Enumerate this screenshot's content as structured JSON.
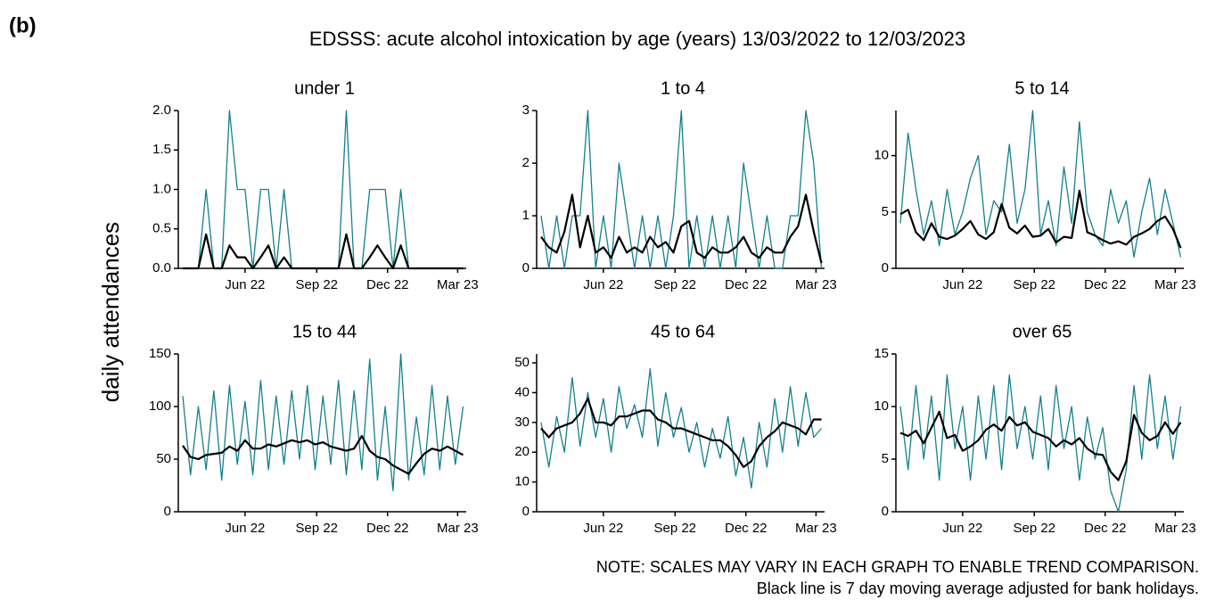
{
  "figure_label": "(b)",
  "title": "EDSSS: acute alcohol intoxication by age (years) 13/03/2022 to 12/03/2023",
  "y_label": "daily attendances",
  "notes": [
    "NOTE: SCALES MAY VARY IN EACH GRAPH TO ENABLE TREND COMPARISON.",
    "Black line is 7 day moving average adjusted for bank holidays."
  ],
  "chart_data": [
    {
      "type": "line",
      "title": "under 1",
      "x": [
        0,
        10,
        20,
        30,
        40,
        50,
        60,
        70,
        80,
        90,
        100,
        110,
        120,
        130,
        140,
        150,
        160,
        170,
        180,
        190,
        200,
        210,
        220,
        230,
        240,
        250,
        260,
        270,
        280,
        290,
        300,
        310,
        320,
        330,
        340,
        350,
        360
      ],
      "xlim": [
        0,
        364
      ],
      "xticks": [
        {
          "value": 80,
          "label": "Jun 22"
        },
        {
          "value": 172,
          "label": "Sep 22"
        },
        {
          "value": 263,
          "label": "Dec 22"
        },
        {
          "value": 353,
          "label": "Mar 23"
        }
      ],
      "ylim": [
        0,
        2
      ],
      "yticks": [
        {
          "value": 0,
          "label": "0.0"
        },
        {
          "value": 0.5,
          "label": "0.5"
        },
        {
          "value": 1,
          "label": "1.0"
        },
        {
          "value": 1.5,
          "label": "1.5"
        },
        {
          "value": 2,
          "label": "2.0"
        }
      ],
      "series": [
        {
          "color": "#12808f",
          "values": [
            0,
            0,
            0,
            1,
            0,
            0,
            2,
            1,
            1,
            0,
            1,
            1,
            0,
            1,
            0,
            0,
            0,
            0,
            0,
            0,
            0,
            2,
            0,
            0,
            1,
            1,
            1,
            0,
            1,
            0,
            0,
            0,
            0,
            0,
            0,
            0,
            0
          ]
        },
        {
          "color": "#000000",
          "values": [
            0,
            0,
            0,
            0.43,
            0,
            0,
            0.29,
            0.14,
            0.14,
            0,
            0.14,
            0.29,
            0,
            0.14,
            0,
            0,
            0,
            0,
            0,
            0,
            0,
            0.43,
            0,
            0,
            0.14,
            0.29,
            0.14,
            0,
            0.29,
            0,
            0,
            0,
            0,
            0,
            0,
            0,
            0
          ]
        }
      ]
    },
    {
      "type": "line",
      "title": "1 to 4",
      "x": [
        0,
        10,
        20,
        30,
        40,
        50,
        60,
        70,
        80,
        90,
        100,
        110,
        120,
        130,
        140,
        150,
        160,
        170,
        180,
        190,
        200,
        210,
        220,
        230,
        240,
        250,
        260,
        270,
        280,
        290,
        300,
        310,
        320,
        330,
        340,
        350,
        360
      ],
      "xlim": [
        0,
        364
      ],
      "xticks": [
        {
          "value": 80,
          "label": "Jun 22"
        },
        {
          "value": 172,
          "label": "Sep 22"
        },
        {
          "value": 263,
          "label": "Dec 22"
        },
        {
          "value": 353,
          "label": "Mar 23"
        }
      ],
      "ylim": [
        0,
        3
      ],
      "yticks": [
        0,
        1,
        2,
        3
      ],
      "series": [
        {
          "color": "#12808f",
          "values": [
            1,
            0,
            1,
            0,
            1,
            1,
            3,
            0,
            1,
            0,
            2,
            1,
            0,
            1,
            0,
            1,
            0,
            1,
            3,
            0,
            1,
            0,
            1,
            0,
            1,
            0,
            2,
            1,
            0,
            1,
            0,
            0,
            1,
            1,
            3,
            2,
            0
          ]
        },
        {
          "color": "#000000",
          "values": [
            0.6,
            0.4,
            0.3,
            0.7,
            1.4,
            0.4,
            1.0,
            0.3,
            0.4,
            0.2,
            0.6,
            0.3,
            0.4,
            0.3,
            0.6,
            0.4,
            0.5,
            0.3,
            0.8,
            0.9,
            0.3,
            0.2,
            0.4,
            0.3,
            0.3,
            0.4,
            0.6,
            0.3,
            0.2,
            0.4,
            0.3,
            0.3,
            0.6,
            0.8,
            1.4,
            0.7,
            0.1
          ]
        }
      ]
    },
    {
      "type": "line",
      "title": "5 to 14",
      "x": [
        0,
        10,
        20,
        30,
        40,
        50,
        60,
        70,
        80,
        90,
        100,
        110,
        120,
        130,
        140,
        150,
        160,
        170,
        180,
        190,
        200,
        210,
        220,
        230,
        240,
        250,
        260,
        270,
        280,
        290,
        300,
        310,
        320,
        330,
        340,
        350,
        360
      ],
      "xlim": [
        0,
        364
      ],
      "xticks": [
        {
          "value": 80,
          "label": "Jun 22"
        },
        {
          "value": 172,
          "label": "Sep 22"
        },
        {
          "value": 263,
          "label": "Dec 22"
        },
        {
          "value": 353,
          "label": "Mar 23"
        }
      ],
      "ylim": [
        0,
        14
      ],
      "yticks": [
        0,
        5,
        10
      ],
      "series": [
        {
          "color": "#12808f",
          "values": [
            4,
            12,
            7,
            3,
            6,
            2,
            7,
            3,
            5,
            8,
            10,
            3,
            6,
            5,
            11,
            4,
            7,
            14,
            3,
            6,
            2,
            9,
            4,
            13,
            5,
            3,
            2,
            7,
            4,
            6,
            1,
            5,
            8,
            3,
            7,
            4,
            1
          ]
        },
        {
          "color": "#000000",
          "values": [
            4.8,
            5.2,
            3.2,
            2.5,
            4.0,
            2.8,
            2.6,
            2.9,
            3.5,
            4.2,
            3.0,
            2.6,
            3.2,
            5.7,
            3.6,
            3.1,
            3.8,
            2.8,
            2.9,
            3.5,
            2.3,
            2.8,
            2.7,
            6.9,
            3.2,
            2.9,
            2.5,
            2.2,
            2.4,
            2.1,
            2.8,
            3.1,
            3.5,
            4.2,
            4.6,
            3.5,
            1.8
          ]
        }
      ]
    },
    {
      "type": "line",
      "title": "15 to 44",
      "x": [
        0,
        10,
        20,
        30,
        40,
        50,
        60,
        70,
        80,
        90,
        100,
        110,
        120,
        130,
        140,
        150,
        160,
        170,
        180,
        190,
        200,
        210,
        220,
        230,
        240,
        250,
        260,
        270,
        280,
        290,
        300,
        310,
        320,
        330,
        340,
        350,
        360
      ],
      "xlim": [
        0,
        364
      ],
      "xticks": [
        {
          "value": 80,
          "label": "Jun 22"
        },
        {
          "value": 172,
          "label": "Sep 22"
        },
        {
          "value": 263,
          "label": "Dec 22"
        },
        {
          "value": 353,
          "label": "Mar 23"
        }
      ],
      "ylim": [
        0,
        150
      ],
      "yticks": [
        0,
        50,
        100,
        150
      ],
      "series": [
        {
          "color": "#12808f",
          "values": [
            110,
            35,
            100,
            40,
            115,
            30,
            120,
            45,
            105,
            35,
            125,
            40,
            110,
            45,
            115,
            50,
            120,
            40,
            110,
            45,
            125,
            35,
            115,
            40,
            145,
            30,
            100,
            20,
            150,
            30,
            90,
            35,
            120,
            40,
            110,
            45,
            100
          ]
        },
        {
          "color": "#000000",
          "values": [
            63,
            52,
            50,
            54,
            55,
            56,
            62,
            58,
            68,
            60,
            60,
            64,
            62,
            65,
            68,
            66,
            68,
            64,
            66,
            62,
            60,
            58,
            60,
            72,
            58,
            52,
            50,
            44,
            40,
            36,
            46,
            55,
            60,
            58,
            62,
            58,
            54
          ]
        }
      ]
    },
    {
      "type": "line",
      "title": "45 to 64",
      "x": [
        0,
        10,
        20,
        30,
        40,
        50,
        60,
        70,
        80,
        90,
        100,
        110,
        120,
        130,
        140,
        150,
        160,
        170,
        180,
        190,
        200,
        210,
        220,
        230,
        240,
        250,
        260,
        270,
        280,
        290,
        300,
        310,
        320,
        330,
        340,
        350,
        360
      ],
      "xlim": [
        0,
        364
      ],
      "xticks": [
        {
          "value": 80,
          "label": "Jun 22"
        },
        {
          "value": 172,
          "label": "Sep 22"
        },
        {
          "value": 263,
          "label": "Dec 22"
        },
        {
          "value": 353,
          "label": "Mar 23"
        }
      ],
      "ylim": [
        0,
        53
      ],
      "yticks": [
        0,
        10,
        20,
        30,
        40,
        50
      ],
      "series": [
        {
          "color": "#12808f",
          "values": [
            30,
            15,
            32,
            20,
            45,
            22,
            40,
            25,
            38,
            20,
            42,
            28,
            36,
            25,
            48,
            22,
            40,
            25,
            35,
            20,
            30,
            15,
            28,
            18,
            32,
            12,
            25,
            8,
            30,
            15,
            38,
            20,
            42,
            22,
            40,
            25,
            28
          ]
        },
        {
          "color": "#000000",
          "values": [
            28,
            25,
            28,
            29,
            30,
            33,
            38,
            30,
            30,
            29,
            32,
            32,
            33,
            34,
            34,
            31,
            30,
            28,
            28,
            27,
            26,
            25,
            24,
            24,
            22,
            19,
            15,
            17,
            22,
            25,
            27,
            30,
            29,
            28,
            26,
            31,
            31
          ]
        }
      ]
    },
    {
      "type": "line",
      "title": "over 65",
      "x": [
        0,
        10,
        20,
        30,
        40,
        50,
        60,
        70,
        80,
        90,
        100,
        110,
        120,
        130,
        140,
        150,
        160,
        170,
        180,
        190,
        200,
        210,
        220,
        230,
        240,
        250,
        260,
        270,
        280,
        290,
        300,
        310,
        320,
        330,
        340,
        350,
        360
      ],
      "xlim": [
        0,
        364
      ],
      "xticks": [
        {
          "value": 80,
          "label": "Jun 22"
        },
        {
          "value": 172,
          "label": "Sep 22"
        },
        {
          "value": 263,
          "label": "Dec 22"
        },
        {
          "value": 353,
          "label": "Mar 23"
        }
      ],
      "ylim": [
        0,
        15
      ],
      "yticks": [
        0,
        5,
        10,
        15
      ],
      "series": [
        {
          "color": "#12808f",
          "values": [
            10,
            4,
            12,
            5,
            11,
            3,
            13,
            6,
            10,
            3,
            11,
            5,
            12,
            4,
            13,
            6,
            10,
            5,
            11,
            4,
            12,
            6,
            10,
            3,
            9,
            5,
            8,
            2,
            0,
            4,
            12,
            5,
            13,
            6,
            11,
            5,
            10
          ]
        },
        {
          "color": "#000000",
          "values": [
            7.5,
            7.2,
            7.7,
            6.5,
            8.0,
            9.5,
            7.0,
            7.3,
            5.8,
            6.2,
            6.8,
            7.8,
            8.3,
            7.7,
            9.0,
            8.2,
            8.5,
            7.6,
            7.3,
            7.0,
            6.2,
            6.8,
            6.4,
            7.0,
            6.0,
            5.5,
            5.4,
            3.8,
            3.0,
            4.8,
            9.2,
            7.5,
            6.8,
            7.2,
            8.5,
            7.4,
            8.5
          ]
        }
      ]
    }
  ]
}
